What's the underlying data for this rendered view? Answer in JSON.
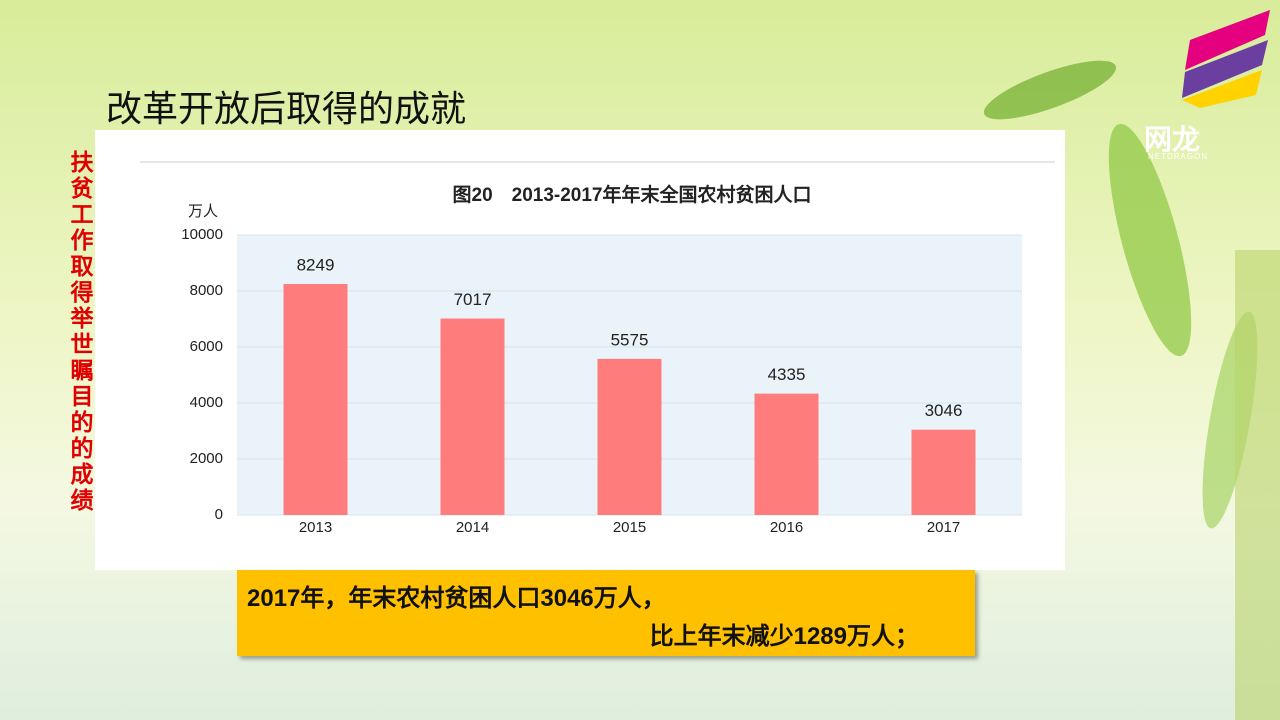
{
  "slide_title": "改革开放后取得的成就",
  "side_text": "扶贫工作取得举世瞩目的的成绩",
  "callout": {
    "line1": "2017年，年末农村贫困人口3046万人，",
    "line2": "比上年末减少1289万人；"
  },
  "logo": {
    "name": "网龙",
    "sub": "NETDRAGON"
  },
  "chart_data": {
    "type": "bar",
    "title": "图20　2013-2017年年末全国农村贫困人口",
    "y_label": "万人",
    "categories": [
      "2013",
      "2014",
      "2015",
      "2016",
      "2017"
    ],
    "values": [
      8249,
      7017,
      5575,
      4335,
      3046
    ],
    "color": "#ff7c7c",
    "ylim": [
      0,
      10000
    ],
    "yticks": [
      0,
      2000,
      4000,
      6000,
      8000,
      10000
    ],
    "grid": true
  }
}
